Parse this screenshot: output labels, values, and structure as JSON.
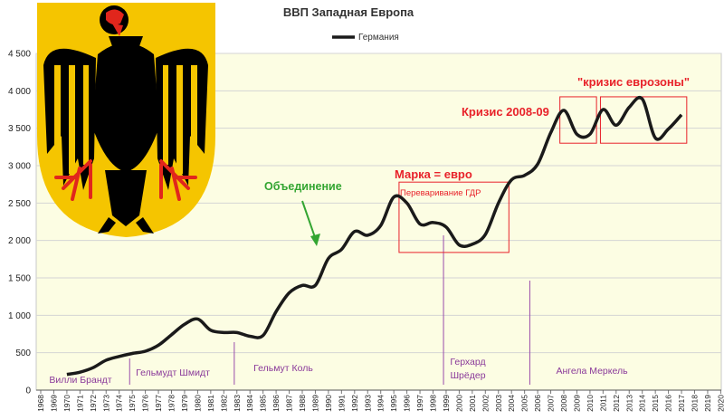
{
  "chart_data": {
    "type": "line",
    "title": "ВВП Западная Европа",
    "legend": [
      "Германия"
    ],
    "legend_position": "top-center",
    "grid": true,
    "plot_background": "#fcfde3",
    "line_color": "#1a1a1a",
    "annotation_color": "#e8222a",
    "xlim": [
      1968,
      2020
    ],
    "ylim": [
      0,
      4500
    ],
    "yticks": [
      0,
      500,
      1000,
      1500,
      2000,
      2500,
      3000,
      3500,
      4000,
      4500
    ],
    "ytick_labels": [
      "0",
      "500",
      "1 000",
      "1 500",
      "2 000",
      "2 500",
      "3 000",
      "3 500",
      "4 000",
      "4 500"
    ],
    "xticks": [
      "1968",
      "1969",
      "1970",
      "1971",
      "1972",
      "1973",
      "1974",
      "1975",
      "1976",
      "1977",
      "1978",
      "1979",
      "1980",
      "1981",
      "1982",
      "1983",
      "1984",
      "1985",
      "1986",
      "1987",
      "1988",
      "1989",
      "1990",
      "1991",
      "1992",
      "1993",
      "1994",
      "1995",
      "1996",
      "1997",
      "1998",
      "1999",
      "2000",
      "2001",
      "2002",
      "2003",
      "2004",
      "2005",
      "2006",
      "2007",
      "2008",
      "2009",
      "2010",
      "2011",
      "2012",
      "2013",
      "2014",
      "2015",
      "2016",
      "2017",
      "2018",
      "2019",
      "2020"
    ],
    "series": [
      {
        "name": "Германия",
        "x": [
          1970,
          1971,
          1972,
          1973,
          1974,
          1975,
          1976,
          1977,
          1978,
          1979,
          1980,
          1981,
          1982,
          1983,
          1984,
          1985,
          1986,
          1987,
          1988,
          1989,
          1990,
          1991,
          1992,
          1993,
          1994,
          1995,
          1996,
          1997,
          1998,
          1999,
          2000,
          2001,
          2002,
          2003,
          2004,
          2005,
          2006,
          2007,
          2008,
          2009,
          2010,
          2011,
          2012,
          2013,
          2014,
          2015,
          2016,
          2017
        ],
        "values": [
          210,
          240,
          300,
          400,
          450,
          490,
          520,
          600,
          740,
          880,
          950,
          800,
          770,
          770,
          720,
          730,
          1050,
          1300,
          1400,
          1400,
          1760,
          1880,
          2120,
          2070,
          2200,
          2580,
          2500,
          2220,
          2240,
          2180,
          1940,
          1950,
          2080,
          2500,
          2810,
          2870,
          3020,
          3440,
          3740,
          3420,
          3420,
          3750,
          3540,
          3780,
          3890,
          3370,
          3490,
          3680
        ]
      }
    ],
    "chancellors": [
      {
        "label": "Вилли Брандт",
        "start": 1969
      },
      {
        "label": "Гельмудт Шмидт",
        "start": 1974.8
      },
      {
        "label": "Гельмут Коль",
        "start": 1982.8
      },
      {
        "label": [
          "Герхард",
          "Шрёдер"
        ],
        "start": 1998.8
      },
      {
        "label": "Ангела Меркель",
        "start": 2005.4
      }
    ],
    "annotations": {
      "reunification": "Объединение",
      "mark_euro": "Марка = евро",
      "gdr_digestion": "Переваривание ГДР",
      "crisis_2008": "Кризис 2008-09",
      "euro_crisis": "\"кризис еврозоны\""
    },
    "boxes": [
      {
        "x": [
          1995.4,
          2003.8
        ],
        "y": [
          1840,
          2780
        ]
      },
      {
        "x": [
          2007.7,
          2010.5
        ],
        "y": [
          3300,
          3920
        ]
      },
      {
        "x": [
          2010.8,
          2017.4
        ],
        "y": [
          3300,
          3920
        ]
      }
    ],
    "coat_of_arms": {
      "icon": "german-eagle-coat-of-arms",
      "shield": "#f5c500",
      "eagle": "#000000",
      "beak_claws": "#e1261c"
    }
  }
}
